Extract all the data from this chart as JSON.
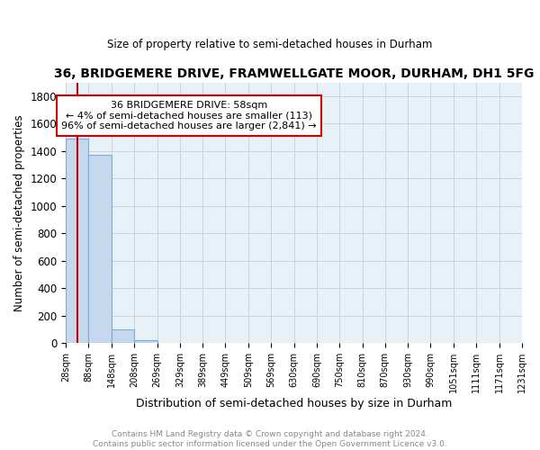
{
  "title": "36, BRIDGEMERE DRIVE, FRAMWELLGATE MOOR, DURHAM, DH1 5FG",
  "subtitle": "Size of property relative to semi-detached houses in Durham",
  "xlabel": "Distribution of semi-detached houses by size in Durham",
  "ylabel": "Number of semi-detached properties",
  "footer_line1": "Contains HM Land Registry data © Crown copyright and database right 2024.",
  "footer_line2": "Contains public sector information licensed under the Open Government Licence v3.0.",
  "annotation_title": "36 BRIDGEMERE DRIVE: 58sqm",
  "annotation_line1": "← 4% of semi-detached houses are smaller (113)",
  "annotation_line2": "96% of semi-detached houses are larger (2,841) →",
  "property_size": 58,
  "bin_edges": [
    28,
    88,
    148,
    208,
    269,
    329,
    389,
    449,
    509,
    569,
    630,
    690,
    750,
    810,
    870,
    930,
    990,
    1051,
    1111,
    1171,
    1231
  ],
  "bin_labels": [
    "28sqm",
    "88sqm",
    "148sqm",
    "208sqm",
    "269sqm",
    "329sqm",
    "389sqm",
    "449sqm",
    "509sqm",
    "569sqm",
    "630sqm",
    "690sqm",
    "750sqm",
    "810sqm",
    "870sqm",
    "930sqm",
    "990sqm",
    "1051sqm",
    "1111sqm",
    "1171sqm",
    "1231sqm"
  ],
  "bar_heights": [
    1490,
    1375,
    98,
    25,
    0,
    0,
    0,
    0,
    0,
    0,
    0,
    0,
    0,
    0,
    0,
    0,
    0,
    0,
    0,
    0
  ],
  "bar_color": "#c5d8ee",
  "bar_edge_color": "#7aafd4",
  "red_line_color": "#cc0000",
  "red_line_x": 58,
  "ylim": [
    0,
    1900
  ],
  "background_color": "#ffffff",
  "plot_bg_color": "#e8f0f8",
  "annotation_box_facecolor": "#ffffff",
  "annotation_box_edgecolor": "#cc0000",
  "grid_color": "#c8d4e0",
  "footer_color": "#888888"
}
